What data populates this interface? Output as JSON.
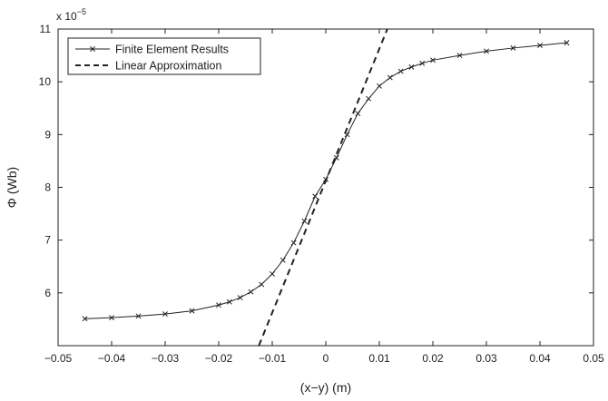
{
  "chart_data": {
    "type": "line",
    "title": "",
    "xlabel": "(x−y) (m)",
    "ylabel": "Φ (Wb)",
    "y_multiplier_base": "x 10",
    "y_multiplier_exp": "−5",
    "xlim": [
      -0.05,
      0.05
    ],
    "ylim": [
      5.0,
      11.0
    ],
    "x_ticks": [
      -0.05,
      -0.04,
      -0.03,
      -0.02,
      -0.01,
      0,
      0.01,
      0.02,
      0.03,
      0.04,
      0.05
    ],
    "x_tick_labels": [
      "−0.05",
      "−0.04",
      "−0.03",
      "−0.02",
      "−0.01",
      "0",
      "0.01",
      "0.02",
      "0.03",
      "0.04",
      "0.05"
    ],
    "y_ticks": [
      6,
      7,
      8,
      9,
      10,
      11
    ],
    "y_tick_labels": [
      "6",
      "7",
      "8",
      "9",
      "10",
      "11"
    ],
    "grid": false,
    "legend_position": "top-left",
    "series": [
      {
        "name": "Finite Element Results",
        "style": "solid line with x markers",
        "color": "#222222",
        "x": [
          -0.045,
          -0.04,
          -0.035,
          -0.03,
          -0.025,
          -0.02,
          -0.018,
          -0.016,
          -0.014,
          -0.012,
          -0.01,
          -0.008,
          -0.006,
          -0.004,
          -0.002,
          0,
          0.002,
          0.004,
          0.006,
          0.008,
          0.01,
          0.012,
          0.014,
          0.016,
          0.018,
          0.02,
          0.025,
          0.03,
          0.035,
          0.04,
          0.045
        ],
        "y": [
          5.51,
          5.53,
          5.56,
          5.6,
          5.66,
          5.77,
          5.83,
          5.91,
          6.02,
          6.16,
          6.36,
          6.62,
          6.95,
          7.36,
          7.83,
          8.15,
          8.56,
          9.0,
          9.4,
          9.68,
          9.92,
          10.08,
          10.2,
          10.28,
          10.35,
          10.41,
          10.5,
          10.58,
          10.64,
          10.69,
          10.74
        ]
      },
      {
        "name": "Linear Approximation",
        "style": "dashed line",
        "color": "#222222",
        "x": [
          -0.0125,
          0.0115
        ],
        "y": [
          5.0,
          11.0
        ]
      }
    ]
  }
}
